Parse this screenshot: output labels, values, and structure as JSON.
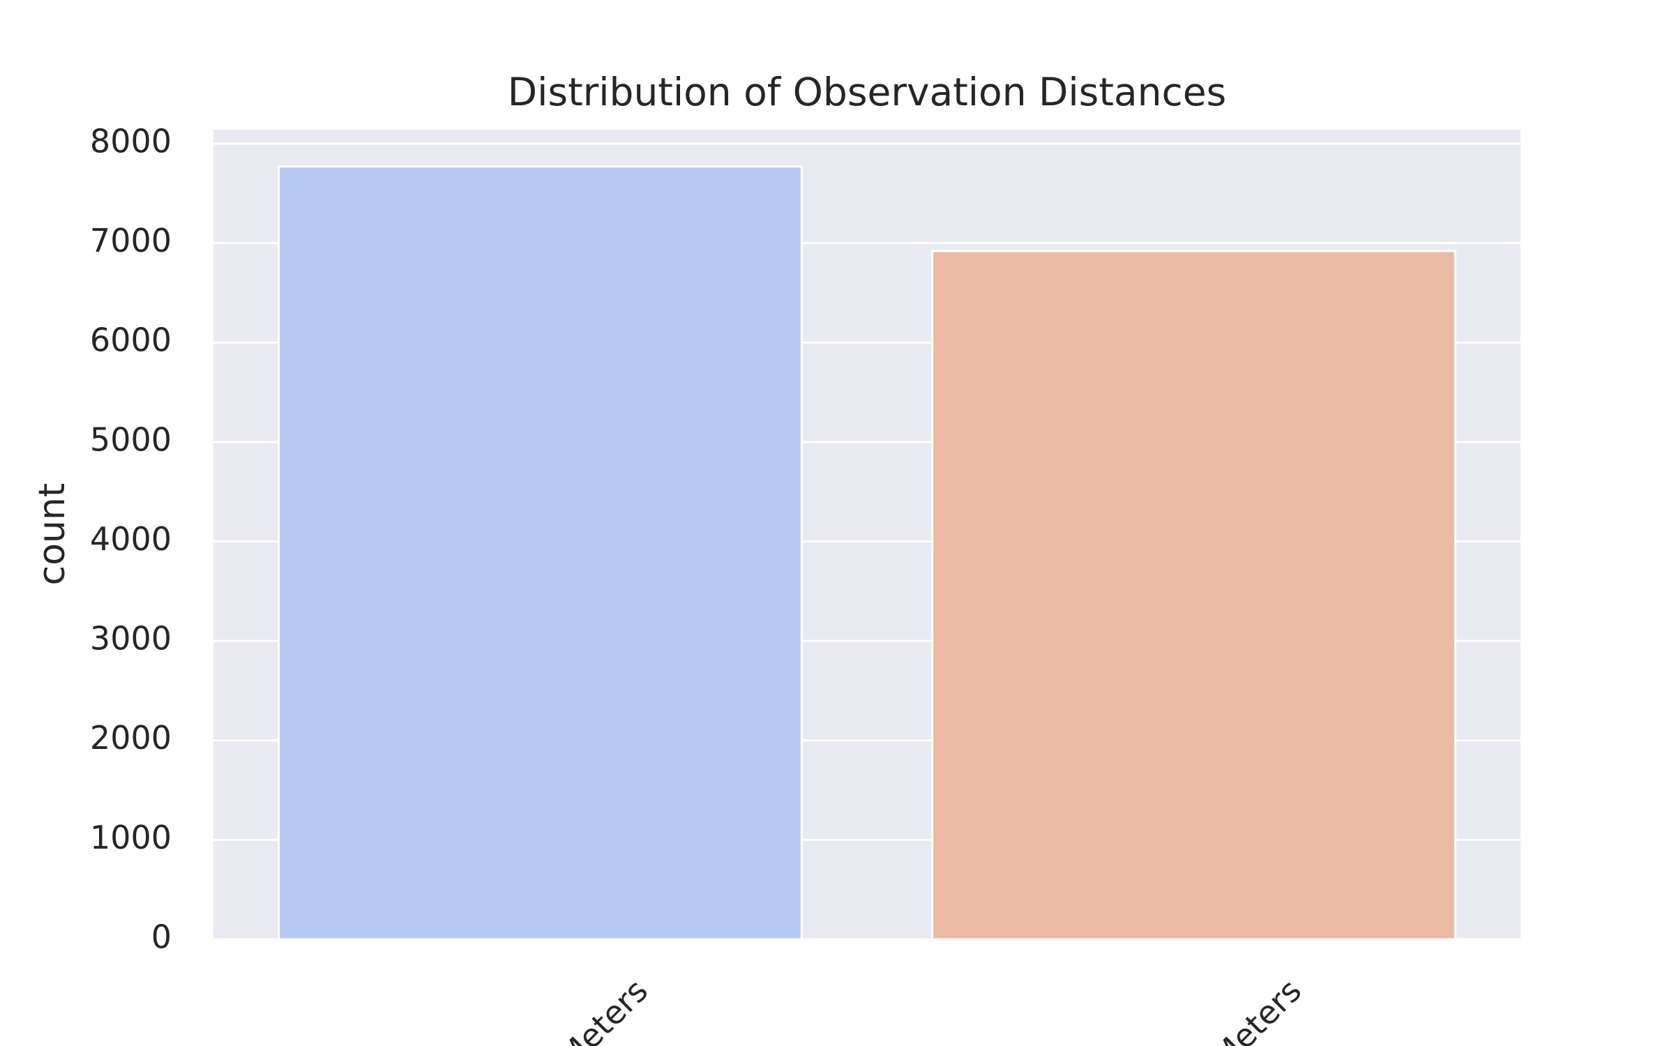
{
  "chart_data": {
    "type": "bar",
    "title": "Distribution of Observation Distances",
    "y_label": "count",
    "categories": [
      "Meters",
      "Meters"
    ],
    "values": [
      7770,
      6920
    ],
    "colors": [
      "#b5c9f2",
      "#ecbba6"
    ],
    "ylim": [
      0,
      8140
    ],
    "yticks": [
      0,
      1000,
      2000,
      3000,
      4000,
      5000,
      6000,
      7000,
      8000
    ],
    "grid": true
  }
}
